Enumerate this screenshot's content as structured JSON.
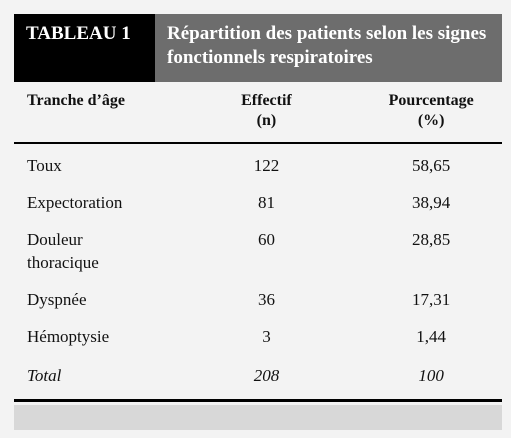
{
  "header": {
    "label": "TABLEAU 1",
    "title": "Répartition des patients selon les signes fonctionnels respiratoires"
  },
  "table": {
    "columns": [
      [
        "Tranche d’âge"
      ],
      [
        "Effectif",
        "(n)"
      ],
      [
        "Pourcentage",
        "(%)"
      ]
    ],
    "rows": [
      [
        "Toux",
        "122",
        "58,65"
      ],
      [
        "Expectoration",
        "81",
        "38,94"
      ],
      [
        "Douleur thoracique",
        "60",
        "28,85"
      ],
      [
        "Dyspnée",
        "36",
        "17,31"
      ],
      [
        "Hémoptysie",
        "3",
        "1,44"
      ]
    ],
    "total": [
      "Total",
      "208",
      "100"
    ]
  }
}
